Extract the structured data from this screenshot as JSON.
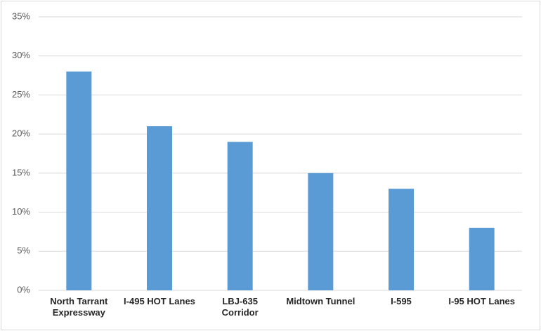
{
  "chart_data": {
    "type": "bar",
    "categories": [
      "North Tarrant\nExpressway",
      "I-495 HOT Lanes",
      "LBJ-635\nCorridor",
      "Midtown Tunnel",
      "I-595",
      "I-95 HOT Lanes"
    ],
    "values": [
      28,
      21,
      19,
      15,
      13,
      8
    ],
    "color": "#5b9bd5",
    "ylim": [
      0,
      35
    ],
    "yticks": [
      {
        "value": 0,
        "label": "0%"
      },
      {
        "value": 5,
        "label": "5%"
      },
      {
        "value": 10,
        "label": "10%"
      },
      {
        "value": 15,
        "label": "15%"
      },
      {
        "value": 20,
        "label": "20%"
      },
      {
        "value": 25,
        "label": "25%"
      },
      {
        "value": 30,
        "label": "30%"
      },
      {
        "value": 35,
        "label": "35%"
      }
    ],
    "grid": true
  }
}
